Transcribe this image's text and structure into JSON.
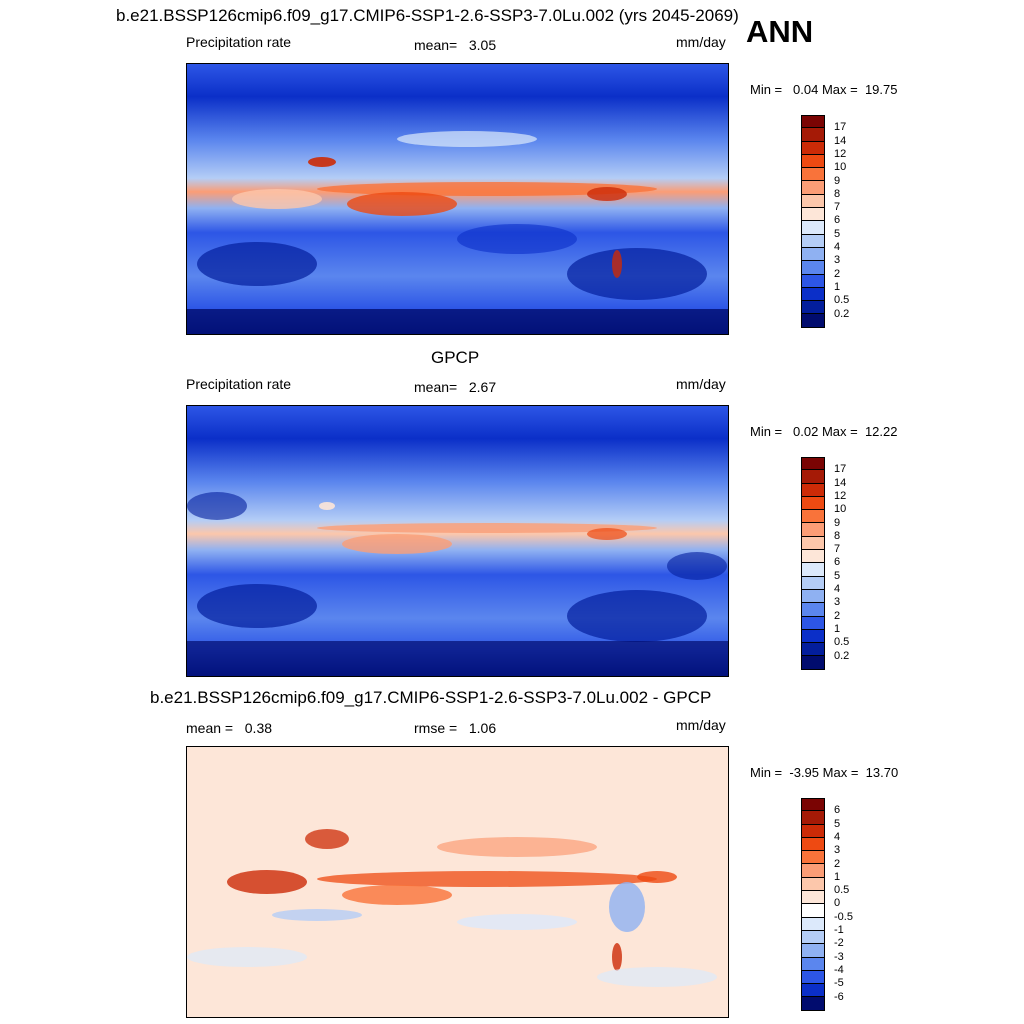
{
  "season": "ANN",
  "units_label": "mm/day",
  "panels": [
    {
      "title": "b.e21.BSSP126cmip6.f09_g17.CMIP6-SSP1-2.6-SSP3-7.0Lu.002 (yrs 2045-2069)",
      "variable": "Precipitation rate",
      "mean_label": "mean=",
      "mean_value": "3.05",
      "units": "mm/day",
      "min_label": "Min =",
      "min_value": "0.04",
      "max_label": "Max =",
      "max_value": "19.75"
    },
    {
      "title": "GPCP",
      "variable": "Precipitation rate",
      "mean_label": "mean=",
      "mean_value": "2.67",
      "units": "mm/day",
      "min_label": "Min =",
      "min_value": "0.02",
      "max_label": "Max =",
      "max_value": "12.22"
    },
    {
      "title": "b.e21.BSSP126cmip6.f09_g17.CMIP6-SSP1-2.6-SSP3-7.0Lu.002 - GPCP",
      "mean_label": "mean =",
      "mean_value": "0.38",
      "rmse_label": "rmse =",
      "rmse_value": "1.06",
      "units": "mm/day",
      "min_label": "Min =",
      "min_value": "-3.95",
      "max_label": "Max =",
      "max_value": "13.70"
    }
  ],
  "colorbar_precip": {
    "labels": [
      "17",
      "14",
      "12",
      "10",
      "9",
      "8",
      "7",
      "6",
      "5",
      "4",
      "3",
      "2",
      "1",
      "0.5",
      "0.2"
    ],
    "colors": [
      "#7a0403",
      "#a51a06",
      "#cc2b07",
      "#ee4a12",
      "#f9733a",
      "#fb9d76",
      "#fcc7ab",
      "#fde6d8",
      "#dce9fb",
      "#b4cdf6",
      "#8fb1f2",
      "#5b86ee",
      "#2d56e6",
      "#0b2fc8",
      "#031e9c",
      "#010c6e"
    ]
  },
  "colorbar_diff": {
    "labels": [
      "6",
      "5",
      "4",
      "3",
      "2",
      "1",
      "0.5",
      "0",
      "-0.5",
      "-1",
      "-2",
      "-3",
      "-4",
      "-5",
      "-6"
    ],
    "colors": [
      "#7a0403",
      "#a51a06",
      "#cc2b07",
      "#ee4a12",
      "#f9733a",
      "#fb9d76",
      "#fcc7ab",
      "#fde6d8",
      "#ffffff",
      "#dce9fb",
      "#b4cdf6",
      "#8fb1f2",
      "#5b86ee",
      "#2d56e6",
      "#0b2fc8",
      "#010c6e"
    ]
  }
}
